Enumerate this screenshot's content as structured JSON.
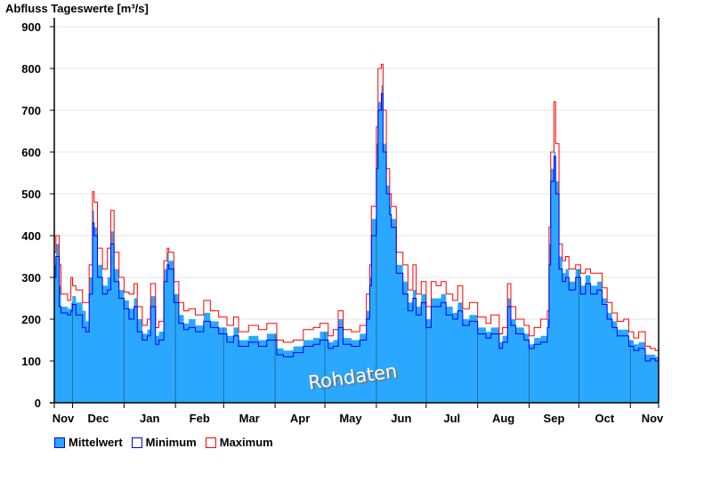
{
  "chart_data": {
    "type": "area",
    "title": "Abfluss Tageswerte [m³/s]",
    "ylim": [
      0,
      900
    ],
    "yticks": [
      0,
      100,
      200,
      300,
      400,
      500,
      600,
      700,
      800,
      900
    ],
    "xdays": 364,
    "months": [
      "Nov",
      "Dec",
      "Jan",
      "Feb",
      "Mar",
      "Apr",
      "May",
      "Jun",
      "Jul",
      "Aug",
      "Sep",
      "Oct",
      "Nov"
    ],
    "month_boundaries_day": [
      11,
      42,
      73,
      102,
      133,
      163,
      194,
      224,
      255,
      286,
      316,
      347
    ],
    "watermark": "Rohdaten",
    "legend": [
      {
        "name": "Mittelwert",
        "fill": "#2aa8ff",
        "stroke": "#0000ff"
      },
      {
        "name": "Minimum",
        "fill": "#ffffff",
        "stroke": "#0000ff"
      },
      {
        "name": "Maximum",
        "fill": "#ffffff",
        "stroke": "#ff0000"
      }
    ],
    "colors": {
      "mean": "#2aa8ff",
      "min": "#0000ff",
      "max": "#ff0000",
      "grid": "#e6e6e6",
      "divider": "#1d6f9f"
    },
    "points_columns": [
      "day",
      "mean",
      "min",
      "max"
    ],
    "points": [
      [
        0,
        330,
        300,
        360
      ],
      [
        1,
        380,
        350,
        400
      ],
      [
        3,
        280,
        230,
        330
      ],
      [
        4,
        230,
        215,
        260
      ],
      [
        8,
        225,
        210,
        245
      ],
      [
        10,
        240,
        220,
        300
      ],
      [
        11,
        255,
        235,
        280
      ],
      [
        13,
        240,
        210,
        270
      ],
      [
        17,
        220,
        180,
        240
      ],
      [
        19,
        195,
        170,
        240
      ],
      [
        21,
        300,
        260,
        330
      ],
      [
        23,
        460,
        430,
        505
      ],
      [
        24,
        420,
        400,
        480
      ],
      [
        26,
        330,
        300,
        370
      ],
      [
        29,
        280,
        260,
        320
      ],
      [
        32,
        300,
        270,
        370
      ],
      [
        34,
        410,
        380,
        460
      ],
      [
        36,
        320,
        290,
        360
      ],
      [
        39,
        270,
        250,
        300
      ],
      [
        42,
        245,
        225,
        265
      ],
      [
        45,
        225,
        200,
        260
      ],
      [
        48,
        250,
        230,
        285
      ],
      [
        50,
        200,
        170,
        230
      ],
      [
        53,
        165,
        150,
        185
      ],
      [
        56,
        175,
        160,
        200
      ],
      [
        58,
        255,
        230,
        285
      ],
      [
        61,
        160,
        140,
        180
      ],
      [
        63,
        170,
        150,
        195
      ],
      [
        66,
        320,
        290,
        340
      ],
      [
        68,
        360,
        330,
        370
      ],
      [
        69,
        340,
        320,
        360
      ],
      [
        72,
        260,
        240,
        290
      ],
      [
        75,
        210,
        190,
        240
      ],
      [
        78,
        190,
        175,
        220
      ],
      [
        81,
        200,
        180,
        225
      ],
      [
        85,
        185,
        170,
        210
      ],
      [
        90,
        215,
        195,
        245
      ],
      [
        94,
        195,
        180,
        220
      ],
      [
        99,
        180,
        165,
        205
      ],
      [
        104,
        160,
        145,
        185
      ],
      [
        108,
        180,
        160,
        205
      ],
      [
        111,
        150,
        135,
        170
      ],
      [
        117,
        160,
        145,
        185
      ],
      [
        123,
        150,
        135,
        175
      ],
      [
        128,
        165,
        150,
        190
      ],
      [
        134,
        130,
        115,
        150
      ],
      [
        138,
        125,
        110,
        145
      ],
      [
        144,
        135,
        120,
        150
      ],
      [
        150,
        150,
        135,
        175
      ],
      [
        156,
        155,
        140,
        180
      ],
      [
        160,
        170,
        150,
        190
      ],
      [
        165,
        145,
        130,
        160
      ],
      [
        168,
        150,
        135,
        175
      ],
      [
        171,
        200,
        180,
        220
      ],
      [
        174,
        155,
        140,
        175
      ],
      [
        179,
        150,
        135,
        170
      ],
      [
        184,
        165,
        150,
        185
      ],
      [
        188,
        220,
        200,
        260
      ],
      [
        190,
        300,
        280,
        330
      ],
      [
        191,
        440,
        400,
        470
      ],
      [
        194,
        620,
        560,
        660
      ],
      [
        195,
        720,
        700,
        800
      ],
      [
        197,
        760,
        740,
        810
      ],
      [
        198,
        620,
        600,
        700
      ],
      [
        200,
        520,
        500,
        560
      ],
      [
        202,
        470,
        450,
        500
      ],
      [
        203,
        440,
        420,
        470
      ],
      [
        206,
        330,
        310,
        360
      ],
      [
        210,
        290,
        260,
        330
      ],
      [
        213,
        240,
        220,
        270
      ],
      [
        216,
        270,
        250,
        330
      ],
      [
        218,
        230,
        210,
        260
      ],
      [
        221,
        260,
        240,
        290
      ],
      [
        224,
        200,
        180,
        230
      ],
      [
        227,
        250,
        230,
        290
      ],
      [
        230,
        250,
        230,
        280
      ],
      [
        233,
        260,
        240,
        290
      ],
      [
        236,
        230,
        210,
        260
      ],
      [
        240,
        215,
        200,
        245
      ],
      [
        243,
        240,
        220,
        280
      ],
      [
        246,
        200,
        185,
        225
      ],
      [
        250,
        210,
        195,
        240
      ],
      [
        255,
        180,
        165,
        205
      ],
      [
        260,
        170,
        155,
        190
      ],
      [
        263,
        180,
        165,
        210
      ],
      [
        268,
        145,
        130,
        165
      ],
      [
        270,
        160,
        145,
        180
      ],
      [
        273,
        250,
        230,
        285
      ],
      [
        275,
        200,
        185,
        230
      ],
      [
        278,
        180,
        165,
        200
      ],
      [
        283,
        165,
        150,
        185
      ],
      [
        286,
        140,
        130,
        160
      ],
      [
        289,
        155,
        140,
        180
      ],
      [
        293,
        160,
        145,
        200
      ],
      [
        297,
        200,
        180,
        220
      ],
      [
        298,
        380,
        330,
        420
      ],
      [
        299,
        560,
        530,
        600
      ],
      [
        301,
        600,
        590,
        720
      ],
      [
        302,
        530,
        500,
        620
      ],
      [
        304,
        350,
        320,
        380
      ],
      [
        306,
        310,
        290,
        340
      ],
      [
        308,
        320,
        300,
        350
      ],
      [
        310,
        290,
        270,
        320
      ],
      [
        314,
        320,
        300,
        330
      ],
      [
        317,
        280,
        260,
        310
      ],
      [
        320,
        305,
        285,
        320
      ],
      [
        323,
        280,
        260,
        310
      ],
      [
        327,
        290,
        270,
        310
      ],
      [
        330,
        250,
        235,
        275
      ],
      [
        333,
        215,
        200,
        240
      ],
      [
        336,
        195,
        180,
        215
      ],
      [
        339,
        175,
        160,
        195
      ],
      [
        343,
        175,
        160,
        200
      ],
      [
        346,
        150,
        135,
        170
      ],
      [
        349,
        140,
        125,
        155
      ],
      [
        352,
        145,
        130,
        170
      ],
      [
        356,
        115,
        100,
        135
      ],
      [
        359,
        115,
        105,
        130
      ],
      [
        362,
        110,
        100,
        125
      ],
      [
        364,
        90,
        85,
        125
      ]
    ]
  }
}
